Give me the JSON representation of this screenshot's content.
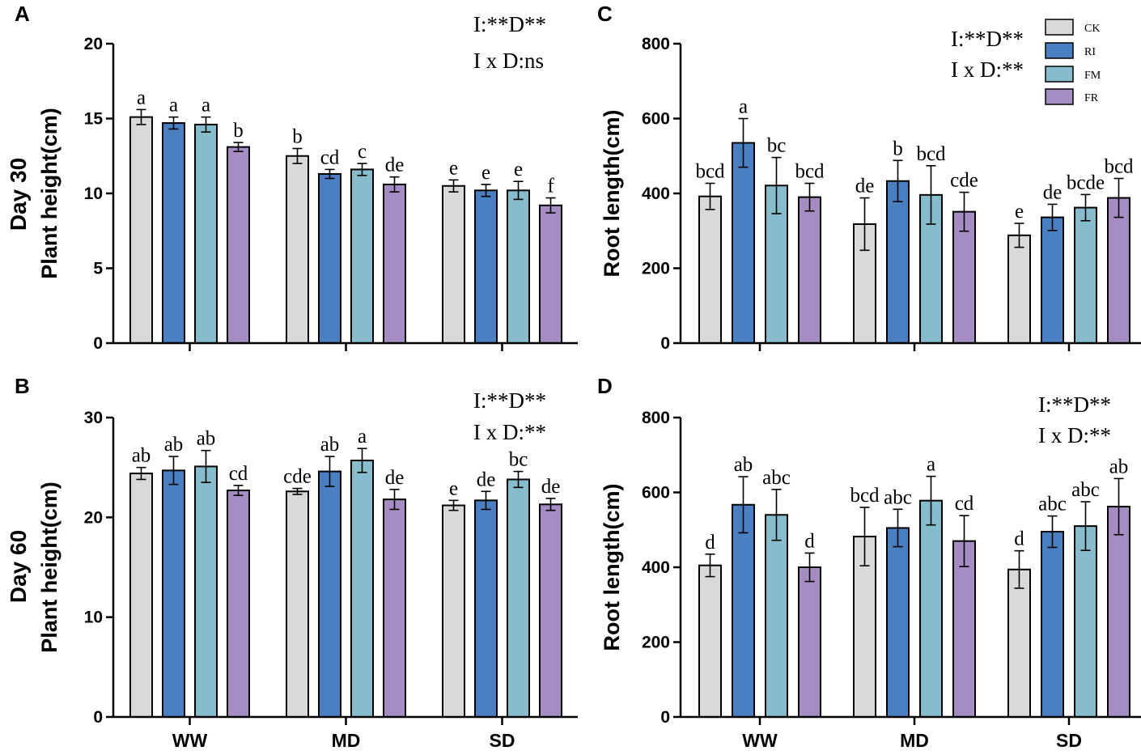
{
  "colors": {
    "CK": "#d9d9d9",
    "RI": "#4a7fc1",
    "FM": "#86bccb",
    "FR": "#a58cc2"
  },
  "row_labels": {
    "top": "Day 30",
    "bottom": "Day 60"
  },
  "legend": {
    "entries": [
      "CK",
      "RI",
      "FM",
      "FR"
    ]
  },
  "chart_data": [
    {
      "panel": "A",
      "type": "bar",
      "ylabel": "Plant height(cm)",
      "ylim": [
        0,
        20
      ],
      "yticks": [
        0,
        5,
        10,
        15,
        20
      ],
      "categories": [
        "WW",
        "MD",
        "SD"
      ],
      "show_category_labels": false,
      "stats": [
        "I:**D**",
        "I x D:ns"
      ],
      "series": [
        {
          "name": "CK",
          "values": [
            15.1,
            12.5,
            10.5
          ],
          "errors": [
            0.5,
            0.5,
            0.4
          ],
          "letters": [
            "a",
            "b",
            "e"
          ]
        },
        {
          "name": "RI",
          "values": [
            14.7,
            11.3,
            10.2
          ],
          "errors": [
            0.4,
            0.3,
            0.4
          ],
          "letters": [
            "a",
            "cd",
            "e"
          ]
        },
        {
          "name": "FM",
          "values": [
            14.6,
            11.6,
            10.2
          ],
          "errors": [
            0.5,
            0.4,
            0.6
          ],
          "letters": [
            "a",
            "c",
            "e"
          ]
        },
        {
          "name": "FR",
          "values": [
            13.1,
            10.6,
            9.2
          ],
          "errors": [
            0.3,
            0.5,
            0.5
          ],
          "letters": [
            "b",
            "de",
            "f"
          ]
        }
      ]
    },
    {
      "panel": "C",
      "type": "bar",
      "ylabel": "Root length(cm)",
      "ylim": [
        0,
        800
      ],
      "yticks": [
        0,
        200,
        400,
        600,
        800
      ],
      "categories": [
        "WW",
        "MD",
        "SD"
      ],
      "show_category_labels": false,
      "stats": [
        "I:**D**",
        "I x D:**"
      ],
      "series": [
        {
          "name": "CK",
          "values": [
            392,
            318,
            288
          ],
          "errors": [
            35,
            70,
            32
          ],
          "letters": [
            "bcd",
            "de",
            "e"
          ]
        },
        {
          "name": "RI",
          "values": [
            535,
            433,
            336
          ],
          "errors": [
            65,
            55,
            35
          ],
          "letters": [
            "a",
            "b",
            "de"
          ]
        },
        {
          "name": "FM",
          "values": [
            421,
            396,
            362
          ],
          "errors": [
            75,
            78,
            35
          ],
          "letters": [
            "bc",
            "bcd",
            "bcde"
          ]
        },
        {
          "name": "FR",
          "values": [
            390,
            351,
            388
          ],
          "errors": [
            37,
            52,
            52
          ],
          "letters": [
            "bcd",
            "cde",
            "bcd"
          ]
        }
      ]
    },
    {
      "panel": "B",
      "type": "bar",
      "ylabel": "Plant height(cm)",
      "ylim": [
        0,
        30
      ],
      "yticks": [
        0,
        10,
        20,
        30
      ],
      "categories": [
        "WW",
        "MD",
        "SD"
      ],
      "show_category_labels": true,
      "stats": [
        "I:**D**",
        "I x D:**"
      ],
      "series": [
        {
          "name": "CK",
          "values": [
            24.4,
            22.6,
            21.2
          ],
          "errors": [
            0.6,
            0.3,
            0.5
          ],
          "letters": [
            "ab",
            "cde",
            "e"
          ]
        },
        {
          "name": "RI",
          "values": [
            24.7,
            24.6,
            21.7
          ],
          "errors": [
            1.4,
            1.5,
            0.9
          ],
          "letters": [
            "ab",
            "ab",
            "de"
          ]
        },
        {
          "name": "FM",
          "values": [
            25.1,
            25.7,
            23.8
          ],
          "errors": [
            1.6,
            1.2,
            0.8
          ],
          "letters": [
            "ab",
            "a",
            "bc"
          ]
        },
        {
          "name": "FR",
          "values": [
            22.7,
            21.8,
            21.3
          ],
          "errors": [
            0.5,
            1.0,
            0.6
          ],
          "letters": [
            "cd",
            "de",
            "de"
          ]
        }
      ]
    },
    {
      "panel": "D",
      "type": "bar",
      "ylabel": "Root length(cm)",
      "ylim": [
        0,
        800
      ],
      "yticks": [
        0,
        200,
        400,
        600,
        800
      ],
      "categories": [
        "WW",
        "MD",
        "SD"
      ],
      "show_category_labels": true,
      "stats": [
        "I:**D**",
        "I x D:**"
      ],
      "series": [
        {
          "name": "CK",
          "values": [
            405,
            482,
            394
          ],
          "errors": [
            30,
            78,
            50
          ],
          "letters": [
            "d",
            "bcd",
            "d"
          ]
        },
        {
          "name": "RI",
          "values": [
            567,
            505,
            495
          ],
          "errors": [
            75,
            50,
            42
          ],
          "letters": [
            "ab",
            "abc",
            "abc"
          ]
        },
        {
          "name": "FM",
          "values": [
            540,
            578,
            510
          ],
          "errors": [
            68,
            65,
            65
          ],
          "letters": [
            "abc",
            "a",
            "abc"
          ]
        },
        {
          "name": "FR",
          "values": [
            400,
            470,
            562
          ],
          "errors": [
            38,
            68,
            75
          ],
          "letters": [
            "d",
            "cd",
            "ab"
          ]
        }
      ]
    }
  ]
}
